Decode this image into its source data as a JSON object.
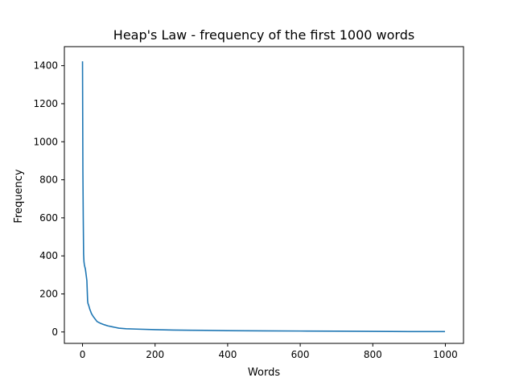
{
  "chart_data": {
    "type": "line",
    "title": "Heap's Law - frequency of the first 1000 words",
    "xlabel": "Words",
    "ylabel": "Frequency",
    "xlim": [
      -50,
      1050
    ],
    "ylim": [
      -60,
      1500
    ],
    "xticks": [
      0,
      200,
      400,
      600,
      800,
      1000
    ],
    "yticks": [
      0,
      200,
      400,
      600,
      800,
      1000,
      1200,
      1400
    ],
    "grid": false,
    "line_color": "#1f77b4",
    "series": [
      {
        "x": [
          0,
          1,
          2,
          3,
          4,
          5,
          6,
          8,
          10,
          12,
          14,
          15,
          17,
          20,
          25,
          30,
          40,
          50,
          60,
          70,
          80,
          90,
          100,
          120,
          150,
          200,
          250,
          300,
          400,
          500,
          600,
          700,
          800,
          900,
          999
        ],
        "y": [
          1423,
          850,
          600,
          410,
          370,
          355,
          345,
          330,
          300,
          270,
          165,
          150,
          140,
          120,
          95,
          80,
          55,
          45,
          38,
          32,
          28,
          24,
          20,
          17,
          15,
          12,
          10,
          9,
          7,
          6,
          5,
          4,
          3,
          2,
          2
        ]
      }
    ]
  }
}
